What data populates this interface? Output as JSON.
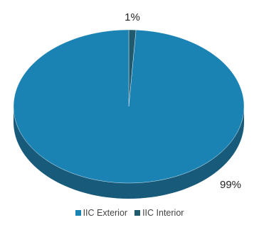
{
  "chart_data": {
    "type": "pie",
    "style": "3d",
    "categories": [
      "IIC Exterior",
      "IIC Interior"
    ],
    "values": [
      99,
      1
    ],
    "data_labels": [
      "99%",
      "1%"
    ],
    "colors": [
      "#1b82b4",
      "#1f5a6e"
    ],
    "side_colors": [
      "#175a7a",
      "#143c4a"
    ],
    "legend_position": "bottom"
  }
}
